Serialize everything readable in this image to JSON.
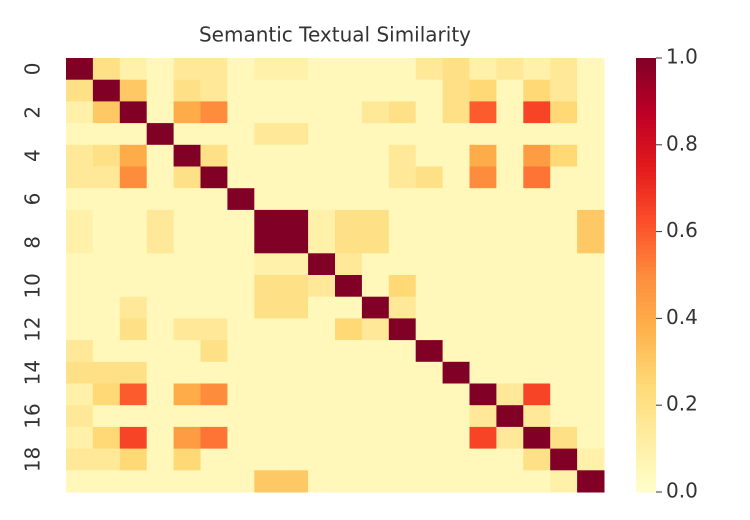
{
  "chart_data": {
    "type": "heatmap",
    "title": "Semantic Textual Similarity",
    "rows": [
      "0",
      null,
      "2",
      null,
      "4",
      null,
      "6",
      null,
      "8",
      null,
      "10",
      null,
      "12",
      null,
      "14",
      null,
      "16",
      null,
      "18",
      null
    ],
    "colormap": "YlOrRd",
    "zlim": [
      0,
      1
    ],
    "zticks": [
      {
        "value": 0,
        "label": "0.0"
      },
      0.2,
      0.4,
      0.6,
      0.8,
      {
        "value": 1,
        "label": "1.0"
      }
    ],
    "z": [
      [
        1,
        0.2,
        0.1,
        0.05,
        0.15,
        0.15,
        0.05,
        0.1,
        0.1,
        0.05,
        0.05,
        0.05,
        0.05,
        0.15,
        0.2,
        0.1,
        0.15,
        0.1,
        0.15,
        0.05
      ],
      [
        0.2,
        1,
        0.3,
        0.05,
        0.2,
        0.15,
        0.05,
        0.05,
        0.05,
        0.05,
        0.05,
        0.05,
        0.05,
        0.05,
        0.2,
        0.25,
        0.05,
        0.25,
        0.15,
        0.05
      ],
      [
        0.1,
        0.3,
        1,
        0.05,
        0.4,
        0.5,
        0.05,
        0.05,
        0.05,
        0.05,
        0.05,
        0.15,
        0.2,
        0.05,
        0.2,
        0.6,
        0.05,
        0.65,
        0.25,
        0.05
      ],
      [
        0.05,
        0.05,
        0.05,
        1,
        0.05,
        0.05,
        0.05,
        0.15,
        0.15,
        0.05,
        0.05,
        0.05,
        0.05,
        0.05,
        0.05,
        0.05,
        0.05,
        0.05,
        0.05,
        0.05
      ],
      [
        0.15,
        0.2,
        0.4,
        0.05,
        1,
        0.2,
        0.05,
        0.05,
        0.05,
        0.05,
        0.05,
        0.05,
        0.15,
        0.05,
        0.05,
        0.4,
        0.05,
        0.45,
        0.25,
        0.05
      ],
      [
        0.15,
        0.15,
        0.5,
        0.05,
        0.2,
        1,
        0.05,
        0.05,
        0.05,
        0.05,
        0.05,
        0.05,
        0.15,
        0.2,
        0.05,
        0.5,
        0.05,
        0.55,
        0.05,
        0.05
      ],
      [
        0.05,
        0.05,
        0.05,
        0.05,
        0.05,
        0.05,
        1,
        0.05,
        0.05,
        0.05,
        0.05,
        0.05,
        0.05,
        0.05,
        0.05,
        0.05,
        0.05,
        0.05,
        0.05,
        0.05
      ],
      [
        0.1,
        0.05,
        0.05,
        0.15,
        0.05,
        0.05,
        0.05,
        1,
        1,
        0.1,
        0.2,
        0.2,
        0.05,
        0.05,
        0.05,
        0.05,
        0.05,
        0.05,
        0.05,
        0.3
      ],
      [
        0.1,
        0.05,
        0.05,
        0.15,
        0.05,
        0.05,
        0.05,
        1,
        1,
        0.1,
        0.2,
        0.2,
        0.05,
        0.05,
        0.05,
        0.05,
        0.05,
        0.05,
        0.05,
        0.3
      ],
      [
        0.05,
        0.05,
        0.05,
        0.05,
        0.05,
        0.05,
        0.05,
        0.1,
        0.1,
        1,
        0.15,
        0.05,
        0.05,
        0.05,
        0.05,
        0.05,
        0.05,
        0.05,
        0.05,
        0.05
      ],
      [
        0.05,
        0.05,
        0.05,
        0.05,
        0.05,
        0.05,
        0.05,
        0.2,
        0.2,
        0.15,
        1,
        0.05,
        0.25,
        0.05,
        0.05,
        0.05,
        0.05,
        0.05,
        0.05,
        0.05
      ],
      [
        0.05,
        0.05,
        0.15,
        0.05,
        0.05,
        0.05,
        0.05,
        0.2,
        0.2,
        0.05,
        0.05,
        1,
        0.15,
        0.05,
        0.05,
        0.05,
        0.05,
        0.05,
        0.05,
        0.05
      ],
      [
        0.05,
        0.05,
        0.2,
        0.05,
        0.15,
        0.15,
        0.05,
        0.05,
        0.05,
        0.05,
        0.25,
        0.15,
        1,
        0.05,
        0.05,
        0.05,
        0.05,
        0.05,
        0.05,
        0.05
      ],
      [
        0.15,
        0.05,
        0.05,
        0.05,
        0.05,
        0.2,
        0.05,
        0.05,
        0.05,
        0.05,
        0.05,
        0.05,
        0.05,
        1,
        0.05,
        0.05,
        0.05,
        0.05,
        0.05,
        0.05
      ],
      [
        0.2,
        0.2,
        0.2,
        0.05,
        0.05,
        0.05,
        0.05,
        0.05,
        0.05,
        0.05,
        0.05,
        0.05,
        0.05,
        0.05,
        1,
        0.05,
        0.05,
        0.05,
        0.05,
        0.05
      ],
      [
        0.1,
        0.25,
        0.6,
        0.05,
        0.4,
        0.5,
        0.05,
        0.05,
        0.05,
        0.05,
        0.05,
        0.05,
        0.05,
        0.05,
        0.05,
        1,
        0.15,
        0.65,
        0.05,
        0.05
      ],
      [
        0.15,
        0.05,
        0.05,
        0.05,
        0.05,
        0.05,
        0.05,
        0.05,
        0.05,
        0.05,
        0.05,
        0.05,
        0.05,
        0.05,
        0.05,
        0.15,
        1,
        0.15,
        0.05,
        0.05
      ],
      [
        0.1,
        0.25,
        0.65,
        0.05,
        0.45,
        0.55,
        0.05,
        0.05,
        0.05,
        0.05,
        0.05,
        0.05,
        0.05,
        0.05,
        0.05,
        0.65,
        0.15,
        1,
        0.2,
        0.05
      ],
      [
        0.15,
        0.15,
        0.25,
        0.05,
        0.25,
        0.05,
        0.05,
        0.05,
        0.05,
        0.05,
        0.05,
        0.05,
        0.05,
        0.05,
        0.05,
        0.05,
        0.05,
        0.2,
        1,
        0.1
      ],
      [
        0.05,
        0.05,
        0.05,
        0.05,
        0.05,
        0.05,
        0.05,
        0.3,
        0.3,
        0.05,
        0.05,
        0.05,
        0.05,
        0.05,
        0.05,
        0.05,
        0.05,
        0.05,
        0.1,
        1
      ]
    ]
  }
}
